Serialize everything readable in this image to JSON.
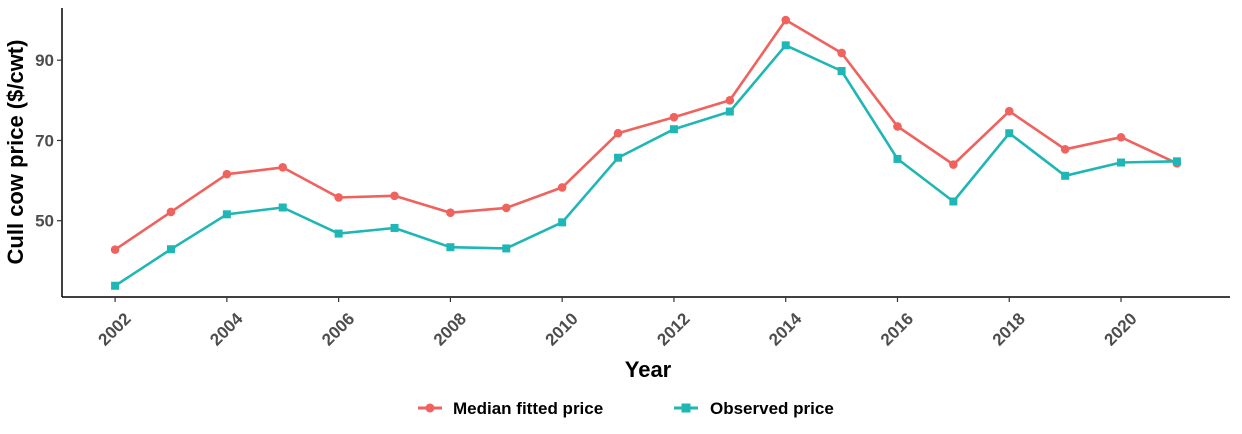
{
  "chart_data": {
    "type": "line",
    "title": "",
    "xlabel": "Year",
    "ylabel": "Cull cow price ($/cwt)",
    "x": [
      2002,
      2003,
      2004,
      2005,
      2006,
      2007,
      2008,
      2009,
      2010,
      2011,
      2012,
      2013,
      2014,
      2015,
      2016,
      2017,
      2018,
      2019,
      2020,
      2021
    ],
    "x_ticks": [
      "2002",
      "2004",
      "2006",
      "2008",
      "2010",
      "2012",
      "2014",
      "2016",
      "2018",
      "2020"
    ],
    "y_ticks": [
      "50",
      "70",
      "90"
    ],
    "xlim": [
      2001.05,
      2021.95
    ],
    "ylim": [
      31.0,
      103.0
    ],
    "grid": false,
    "legend_position": "bottom",
    "series": [
      {
        "name": "Median fitted price",
        "color": "#f0625d",
        "marker": "circle",
        "values": [
          42.8,
          52.2,
          61.6,
          63.3,
          55.8,
          56.2,
          52.0,
          53.2,
          58.3,
          71.8,
          75.8,
          80.0,
          100.0,
          91.8,
          73.5,
          64.0,
          77.3,
          67.8,
          70.8,
          64.3
        ]
      },
      {
        "name": "Observed price",
        "color": "#1fb6b6",
        "marker": "square",
        "values": [
          33.8,
          42.9,
          51.6,
          53.3,
          46.8,
          48.2,
          43.4,
          43.1,
          49.6,
          65.7,
          72.8,
          77.2,
          93.7,
          87.3,
          65.4,
          54.8,
          71.8,
          61.2,
          64.5,
          64.8
        ]
      }
    ]
  }
}
